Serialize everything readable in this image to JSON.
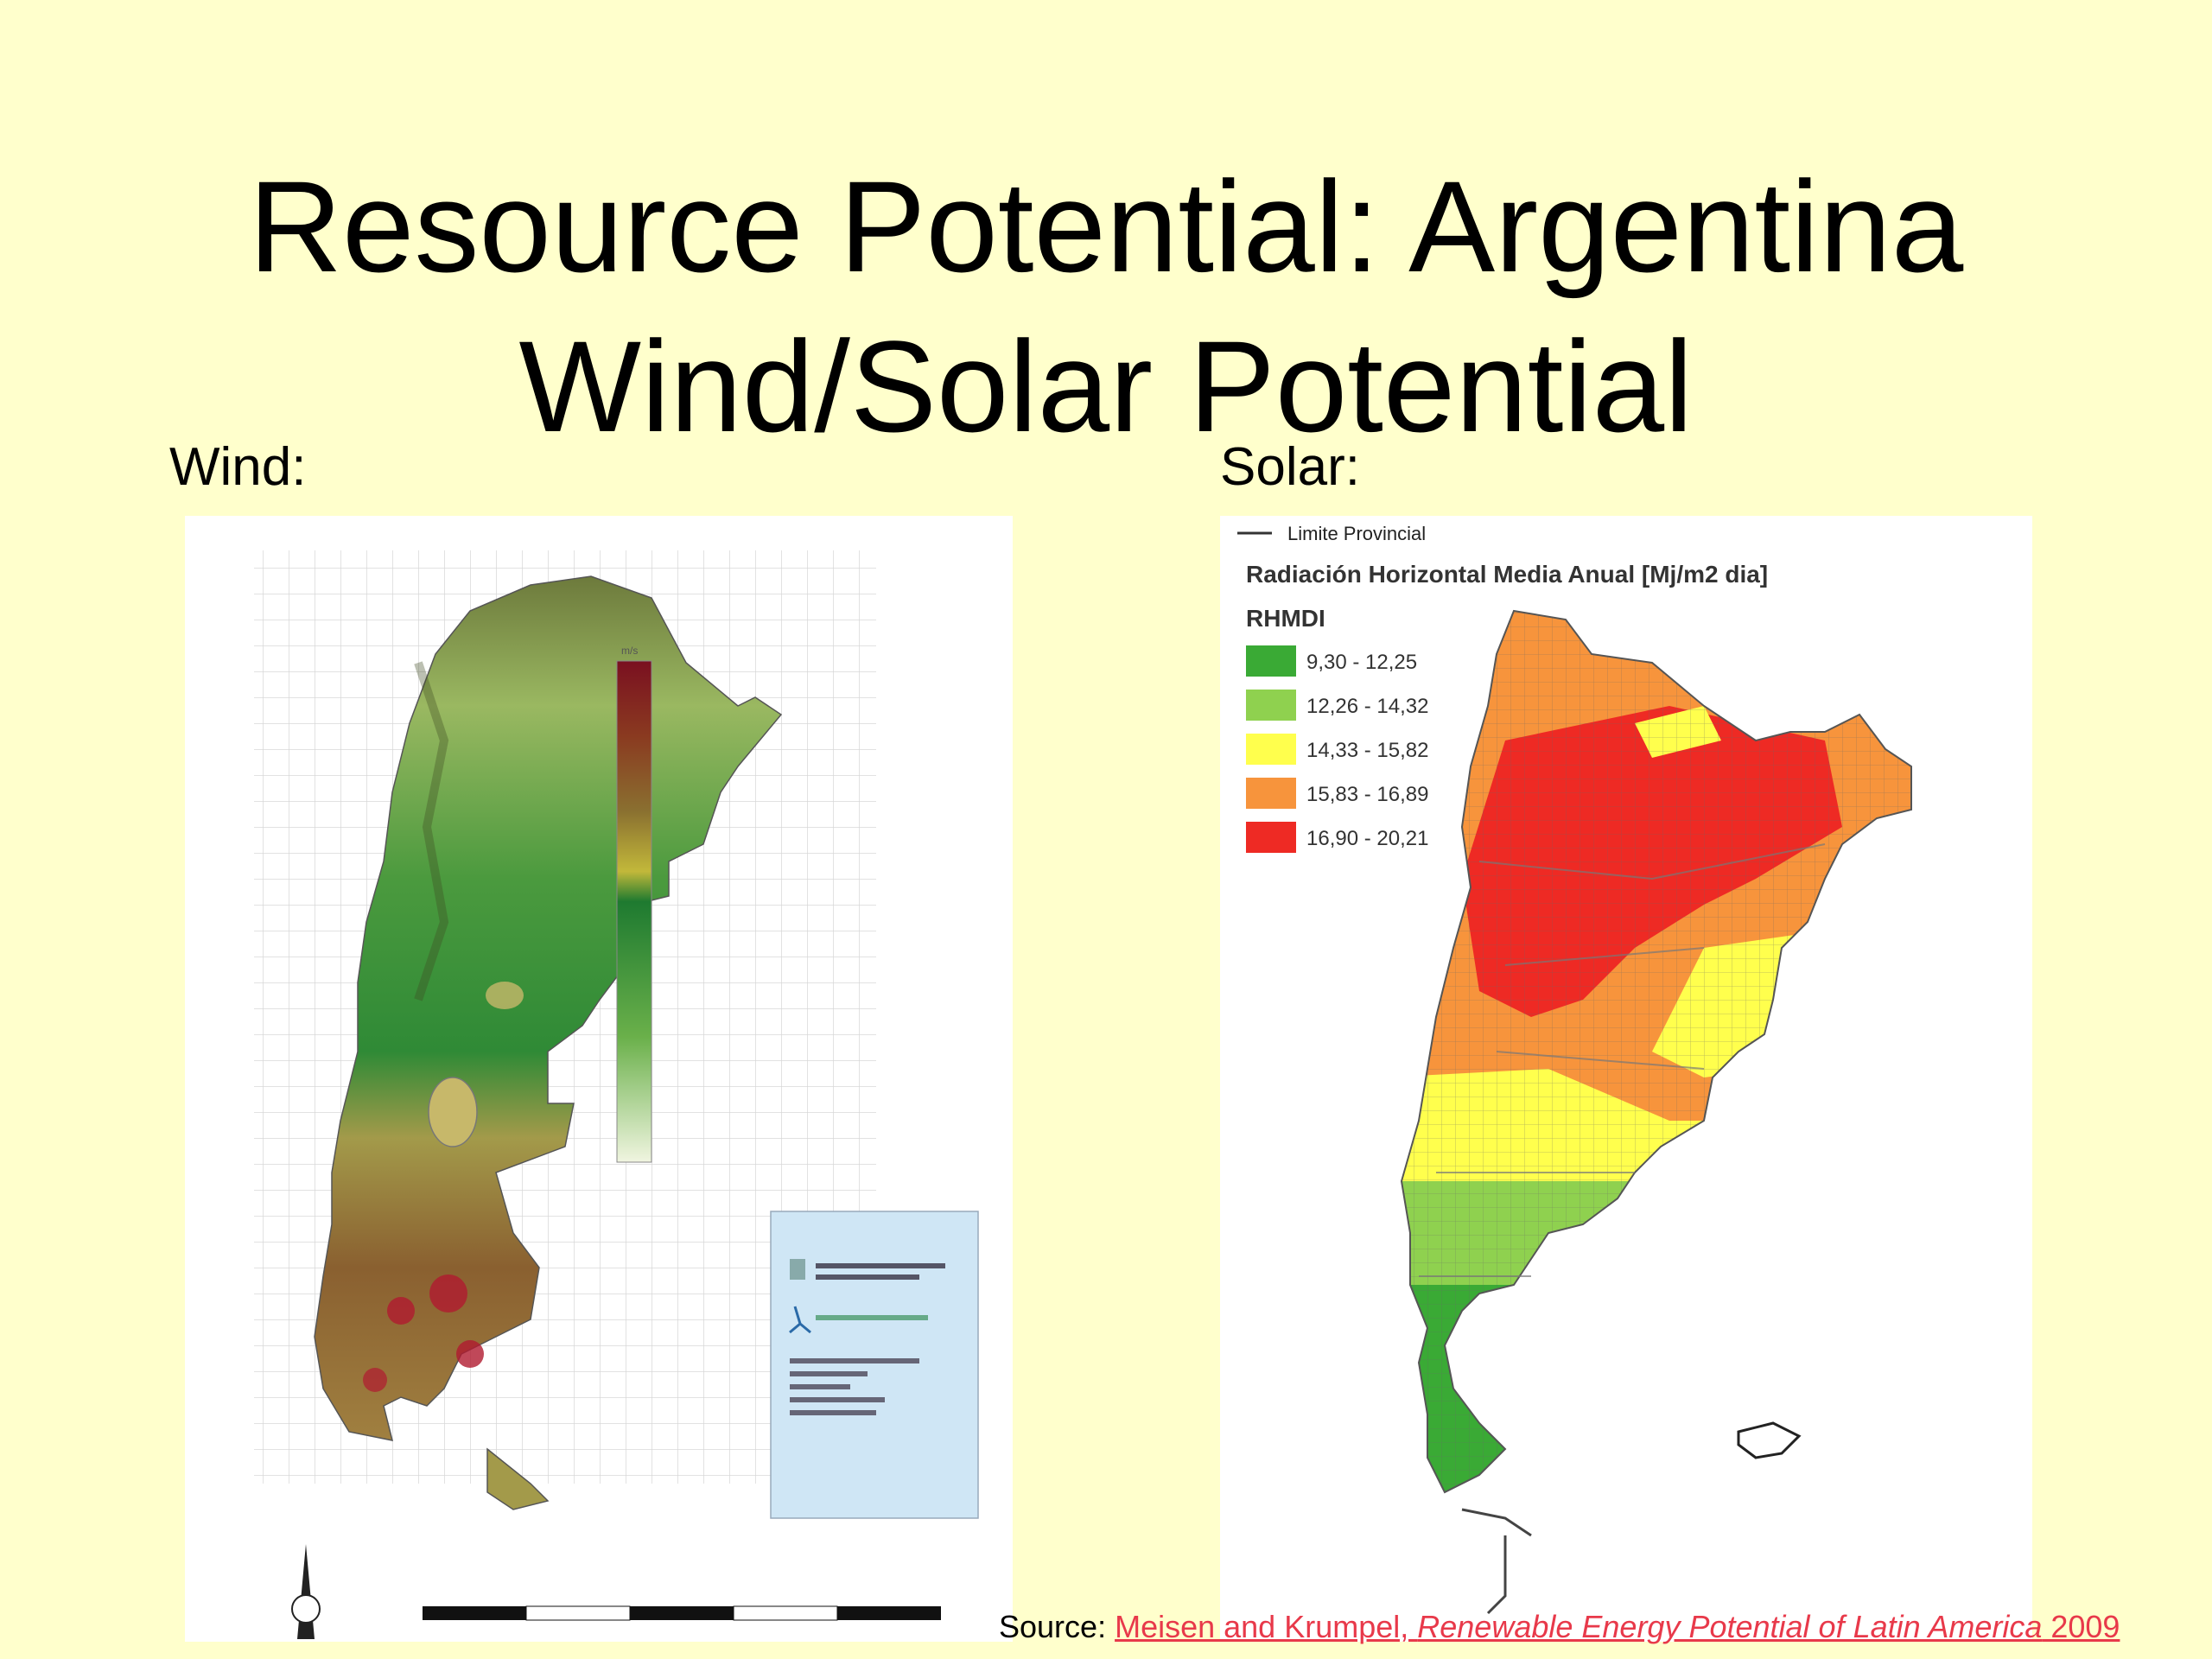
{
  "slide": {
    "title_line1": "Resource Potential: Argentina",
    "title_line2": "Wind/Solar Potential"
  },
  "wind": {
    "label": "Wind:",
    "legend_unit": "m/s"
  },
  "solar": {
    "label": "Solar:",
    "boundary_legend": "Limite Provincial",
    "legend_title": "Radiación Horizontal Media Anual [Mj/m2 dia]",
    "legend_subtitle": "RHMDI",
    "legend_items": [
      {
        "range": "9,30 - 12,25",
        "color": "#3aaa35"
      },
      {
        "range": "12,26 - 14,32",
        "color": "#8fd14f"
      },
      {
        "range": "14,33 - 15,82",
        "color": "#ffff4d"
      },
      {
        "range": "15,83 - 16,89",
        "color": "#f7943c"
      },
      {
        "range": "16,90 - 20,21",
        "color": "#ee2a24"
      }
    ]
  },
  "source": {
    "prefix": "Source: ",
    "authors": "Meisen and Krumpel, ",
    "work": "Renewable Energy Potential of Latin America",
    "year": " 2009"
  },
  "colors": {
    "background": "#ffffcc",
    "link": "#e8394a"
  }
}
